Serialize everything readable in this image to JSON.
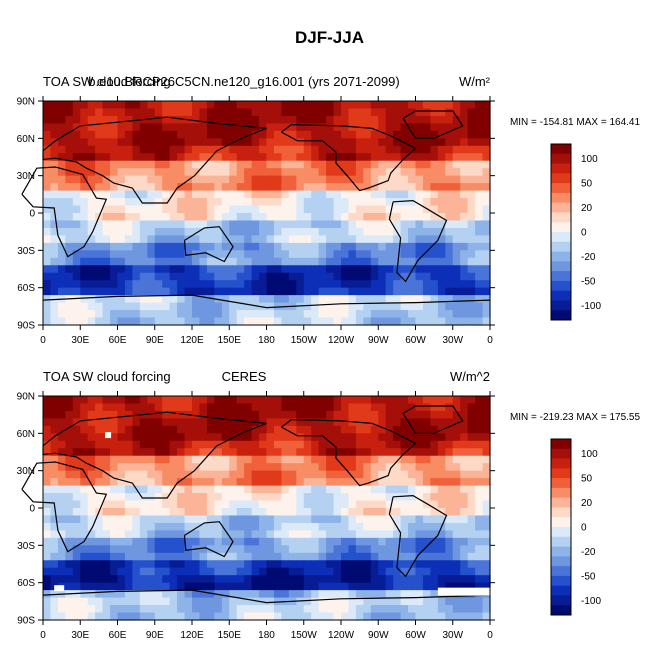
{
  "page": {
    "title": "DJF-JJA"
  },
  "colorbar": {
    "levels": [
      "100",
      "50",
      "20",
      "0",
      "-20",
      "-50",
      "-100"
    ],
    "colors": [
      "#800000",
      "#a50f0a",
      "#c8200e",
      "#e03a1a",
      "#f0603a",
      "#f88c64",
      "#fbb497",
      "#fdd9c7",
      "#fef3ec",
      "#dbe9f8",
      "#b4d1f1",
      "#8db3e8",
      "#6f97e0",
      "#4a74d8",
      "#2551cc",
      "#0d2fb8",
      "#081c96",
      "#000a73"
    ]
  },
  "chart_data": [
    {
      "type": "heatmap",
      "title": "TOA SW cloud forcing",
      "subtitle": "b.e10.BRCP26C5CN.ne120_g16.001 (yrs 2071-2099)",
      "units": "W/m²",
      "stats": "MIN = -154.81 MAX = 164.41",
      "min": -154.81,
      "max": 164.41,
      "x_ticks": [
        "0",
        "30E",
        "60E",
        "90E",
        "120E",
        "150E",
        "180",
        "150W",
        "120W",
        "90W",
        "60W",
        "30W",
        "0"
      ],
      "y_ticks": [
        "90N",
        "60N",
        "30N",
        "0",
        "30S",
        "60S",
        "90S"
      ],
      "xlim": [
        0,
        360
      ],
      "ylim": [
        -90,
        90
      ]
    },
    {
      "type": "heatmap",
      "title": "TOA SW cloud forcing",
      "subtitle": "CERES",
      "units": "W/m^2",
      "stats": "MIN = -219.23 MAX = 175.55",
      "min": -219.23,
      "max": 175.55,
      "x_ticks": [
        "0",
        "30E",
        "60E",
        "90E",
        "120E",
        "150E",
        "180",
        "150W",
        "120W",
        "90W",
        "60W",
        "30W",
        "0"
      ],
      "y_ticks": [
        "90N",
        "60N",
        "30N",
        "0",
        "30S",
        "60S",
        "90S"
      ],
      "xlim": [
        0,
        360
      ],
      "ylim": [
        -90,
        90
      ]
    }
  ]
}
